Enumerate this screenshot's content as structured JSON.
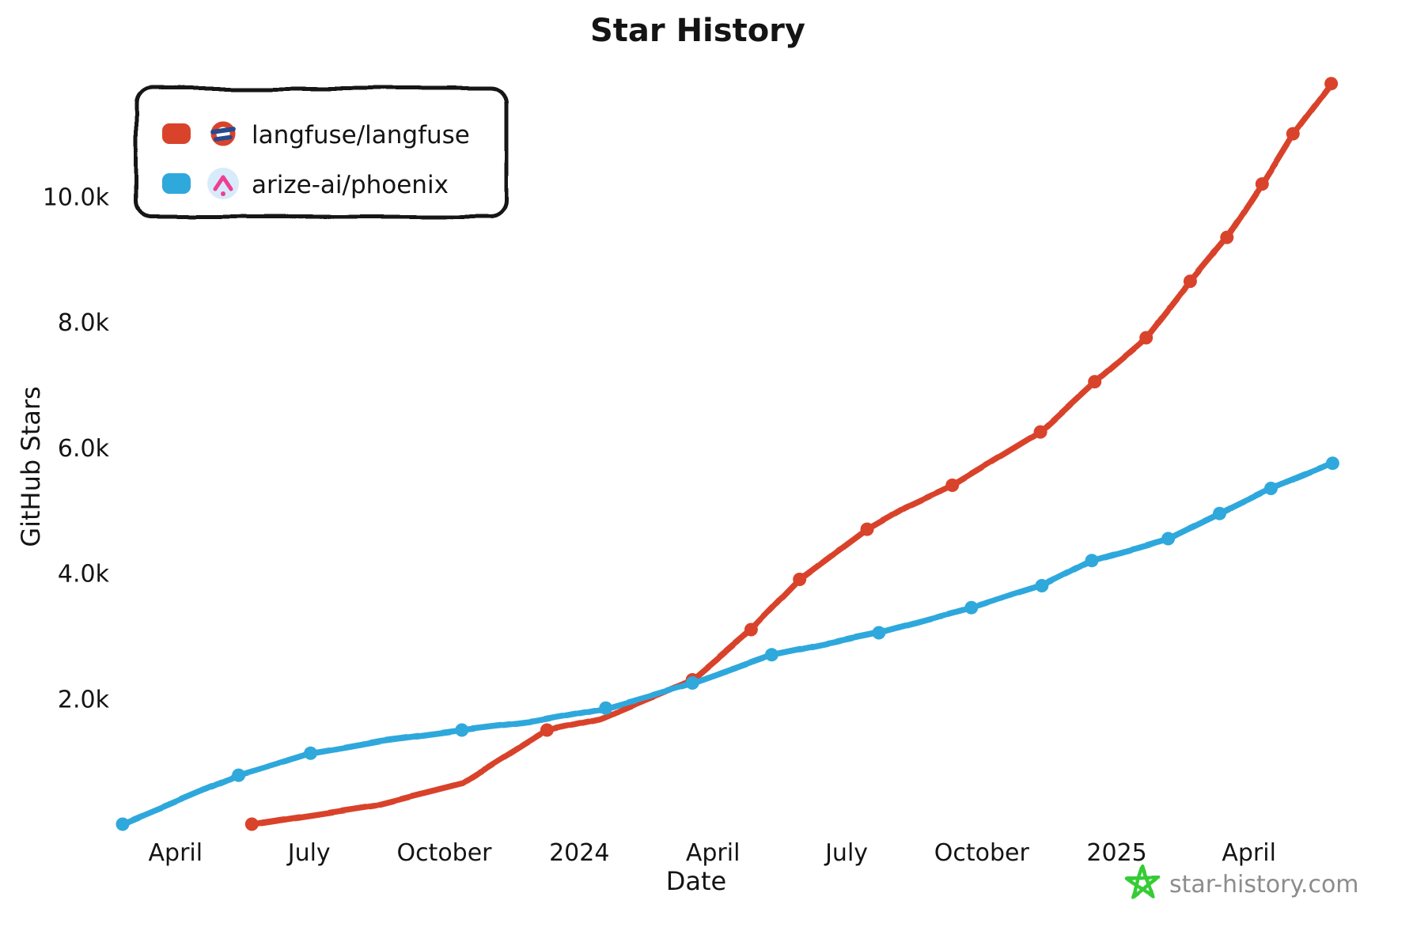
{
  "title": "Star History",
  "colors": {
    "langfuse": "#d9432b",
    "phoenix": "#2fa8dc",
    "axis": "#141414",
    "watermark_star": "#35cc35",
    "watermark_text": "#8c8c8c",
    "phoenix_logo_bg": "#d8ebfa",
    "phoenix_logo_accent": "#ee3f92",
    "langfuse_logo_navy": "#274b8f"
  },
  "legend": {
    "items": [
      {
        "label": "langfuse/langfuse",
        "swatch_color": "#d9432b",
        "logo": "langfuse-logo"
      },
      {
        "label": "arize-ai/phoenix",
        "swatch_color": "#2fa8dc",
        "logo": "phoenix-logo"
      }
    ]
  },
  "y_axis": {
    "label": "GitHub Stars",
    "ticks": [
      {
        "label": "2.0k",
        "value": 2000
      },
      {
        "label": "4.0k",
        "value": 4000
      },
      {
        "label": "6.0k",
        "value": 6000
      },
      {
        "label": "8.0k",
        "value": 8000
      },
      {
        "label": "10.0k",
        "value": 10000
      }
    ]
  },
  "x_axis": {
    "label": "Date",
    "ticks": [
      {
        "label": "April",
        "date": "2023-04-01"
      },
      {
        "label": "July",
        "date": "2023-07-01"
      },
      {
        "label": "October",
        "date": "2023-10-01"
      },
      {
        "label": "2024",
        "date": "2024-01-01"
      },
      {
        "label": "April",
        "date": "2024-04-01"
      },
      {
        "label": "July",
        "date": "2024-07-01"
      },
      {
        "label": "October",
        "date": "2024-10-01"
      },
      {
        "label": "2025",
        "date": "2025-01-01"
      },
      {
        "label": "April",
        "date": "2025-04-01"
      }
    ]
  },
  "watermark": {
    "text": "star-history.com"
  },
  "chart_data": {
    "type": "line",
    "title": "Star History",
    "xlabel": "Date",
    "ylabel": "GitHub Stars",
    "x_range": [
      "2023-02-24",
      "2025-06-05"
    ],
    "y_range": [
      0,
      12000
    ],
    "grid": false,
    "legend_position": "top-left",
    "series": [
      {
        "name": "langfuse/langfuse",
        "color": "#d9432b",
        "points": [
          {
            "date": "2023-05-23",
            "stars": 0,
            "dot": true
          },
          {
            "date": "2023-08-15",
            "stars": 300,
            "dot": false
          },
          {
            "date": "2023-10-13",
            "stars": 650,
            "dot": false
          },
          {
            "date": "2023-12-10",
            "stars": 1500,
            "dot": true
          },
          {
            "date": "2024-01-15",
            "stars": 1680,
            "dot": false
          },
          {
            "date": "2024-03-18",
            "stars": 2300,
            "dot": true
          },
          {
            "date": "2024-04-27",
            "stars": 3100,
            "dot": true
          },
          {
            "date": "2024-05-30",
            "stars": 3900,
            "dot": true
          },
          {
            "date": "2024-07-15",
            "stars": 4700,
            "dot": true
          },
          {
            "date": "2024-08-10",
            "stars": 5050,
            "dot": false
          },
          {
            "date": "2024-09-11",
            "stars": 5400,
            "dot": true
          },
          {
            "date": "2024-11-10",
            "stars": 6250,
            "dot": true
          },
          {
            "date": "2024-12-17",
            "stars": 7050,
            "dot": true
          },
          {
            "date": "2025-01-21",
            "stars": 7750,
            "dot": true
          },
          {
            "date": "2025-02-20",
            "stars": 8650,
            "dot": true
          },
          {
            "date": "2025-03-17",
            "stars": 9350,
            "dot": true
          },
          {
            "date": "2025-04-10",
            "stars": 10200,
            "dot": true
          },
          {
            "date": "2025-05-01",
            "stars": 11000,
            "dot": true
          },
          {
            "date": "2025-05-27",
            "stars": 11800,
            "dot": true
          }
        ]
      },
      {
        "name": "arize-ai/phoenix",
        "color": "#2fa8dc",
        "points": [
          {
            "date": "2023-02-24",
            "stars": 0,
            "dot": true
          },
          {
            "date": "2023-05-14",
            "stars": 780,
            "dot": true
          },
          {
            "date": "2023-07-02",
            "stars": 1130,
            "dot": true
          },
          {
            "date": "2023-08-20",
            "stars": 1330,
            "dot": false
          },
          {
            "date": "2023-10-13",
            "stars": 1500,
            "dot": true
          },
          {
            "date": "2023-12-01",
            "stars": 1640,
            "dot": false
          },
          {
            "date": "2024-01-19",
            "stars": 1850,
            "dot": true
          },
          {
            "date": "2024-03-18",
            "stars": 2250,
            "dot": true
          },
          {
            "date": "2024-05-11",
            "stars": 2700,
            "dot": true
          },
          {
            "date": "2024-07-23",
            "stars": 3050,
            "dot": true
          },
          {
            "date": "2024-09-24",
            "stars": 3450,
            "dot": true
          },
          {
            "date": "2024-11-11",
            "stars": 3800,
            "dot": true
          },
          {
            "date": "2024-12-15",
            "stars": 4200,
            "dot": true
          },
          {
            "date": "2025-02-05",
            "stars": 4550,
            "dot": true
          },
          {
            "date": "2025-03-12",
            "stars": 4950,
            "dot": true
          },
          {
            "date": "2025-04-16",
            "stars": 5350,
            "dot": true
          },
          {
            "date": "2025-05-28",
            "stars": 5750,
            "dot": true
          }
        ]
      }
    ]
  }
}
